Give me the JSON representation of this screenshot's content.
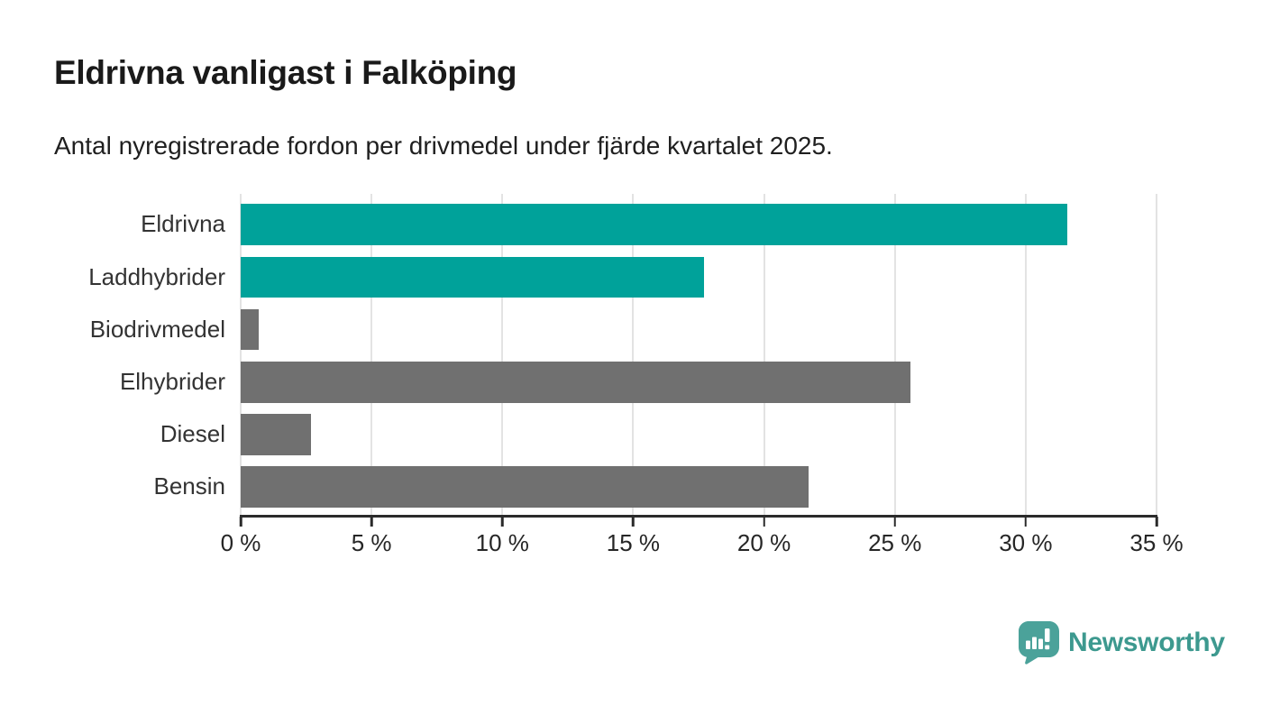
{
  "header": {
    "title": "Eldrivna vanligast i Falköping",
    "subtitle": "Antal nyregistrerade fordon per drivmedel under fjärde kvartalet 2025."
  },
  "chart_data": {
    "type": "bar",
    "orientation": "horizontal",
    "title": "Eldrivna vanligast i Falköping",
    "subtitle": "Antal nyregistrerade fordon per drivmedel under fjärde kvartalet 2025.",
    "categories": [
      "Eldrivna",
      "Laddhybrider",
      "Biodrivmedel",
      "Elhybrider",
      "Diesel",
      "Bensin"
    ],
    "values": [
      31.6,
      17.7,
      0.7,
      25.6,
      2.7,
      21.7
    ],
    "unit": "%",
    "bar_colors": [
      "#00a29a",
      "#00a29a",
      "#707070",
      "#707070",
      "#707070",
      "#707070"
    ],
    "highlight_color": "#00a29a",
    "default_color": "#707070",
    "xlabel": "",
    "ylabel": "",
    "xlim": [
      0,
      35
    ],
    "x_ticks": [
      0,
      5,
      10,
      15,
      20,
      25,
      30,
      35
    ],
    "x_tick_labels": [
      "0 %",
      "5 %",
      "10 %",
      "15 %",
      "20 %",
      "25 %",
      "30 %",
      "35 %"
    ],
    "grid": "vertical-gridlines-on",
    "legend": "none"
  },
  "footer": {
    "brand": "Newsworthy",
    "brand_color": "#3d998f",
    "logo_color": "#4ba29a",
    "logo_icon": "bar-chart-speech-bubble"
  }
}
